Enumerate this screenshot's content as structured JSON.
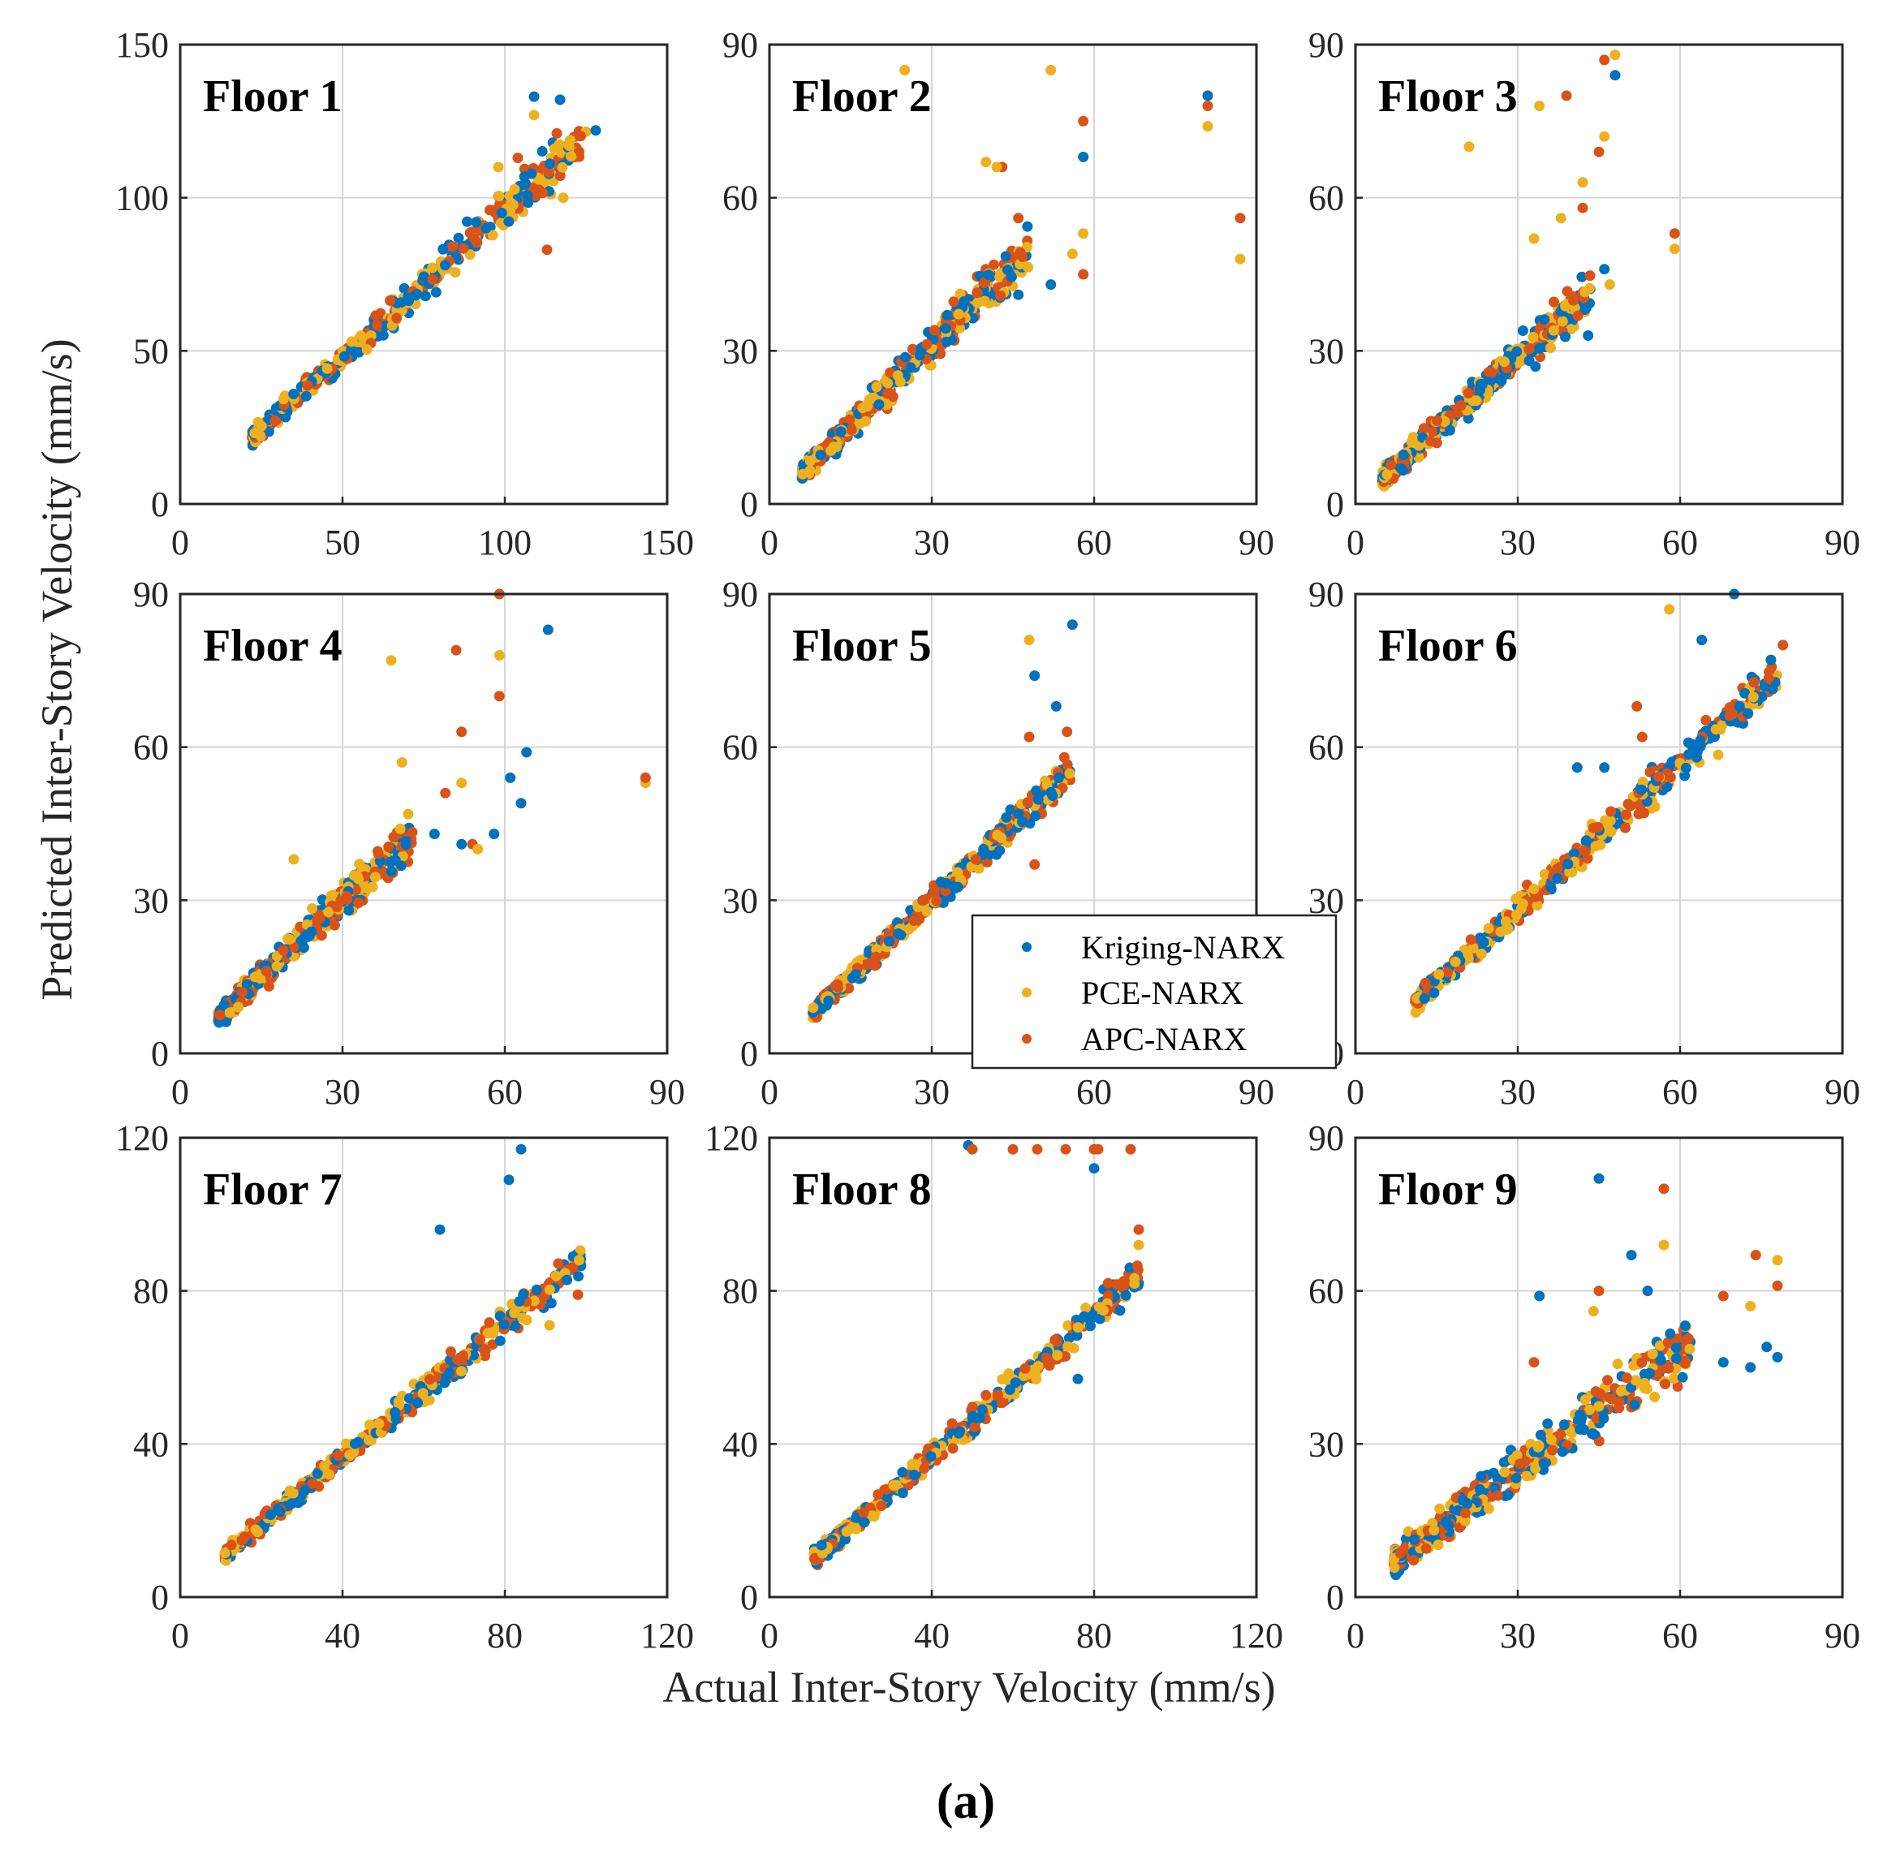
{
  "figure": {
    "ylabel": "Predicted Inter-Story Velocity (mm/s)",
    "xlabel": "Actual Inter-Story Velocity (mm/s)",
    "caption": "(a)"
  },
  "legend": {
    "entries": [
      "Kriging-NARX",
      "PCE-NARX",
      "APC-NARX"
    ],
    "location": "bottom-right of Floor 5 panel"
  },
  "colors": {
    "Kriging-NARX": "#0072BD",
    "PCE-NARX": "#EDB120",
    "APC-NARX": "#D95319"
  },
  "chart_data": [
    {
      "type": "scatter",
      "title": "Floor 1",
      "xlim": [
        0,
        150
      ],
      "ylim": [
        0,
        150
      ],
      "xticks": [
        0,
        50,
        100,
        150
      ],
      "yticks": [
        0,
        50,
        100,
        150
      ],
      "grid": true,
      "trend": {
        "x_start": 22,
        "x_end": 125,
        "y_start": 21,
        "y_end": 120,
        "spread": 4
      },
      "outliers": [
        {
          "series": "Kriging-NARX",
          "x": 109,
          "y": 133
        },
        {
          "series": "Kriging-NARX",
          "x": 117,
          "y": 132
        },
        {
          "series": "Kriging-NARX",
          "x": 128,
          "y": 122
        },
        {
          "series": "PCE-NARX",
          "x": 98,
          "y": 110
        },
        {
          "series": "PCE-NARX",
          "x": 118,
          "y": 100
        },
        {
          "series": "PCE-NARX",
          "x": 109,
          "y": 127
        },
        {
          "series": "APC-NARX",
          "x": 113,
          "y": 83
        },
        {
          "series": "APC-NARX",
          "x": 104,
          "y": 113
        },
        {
          "series": "APC-NARX",
          "x": 116,
          "y": 121
        }
      ]
    },
    {
      "type": "scatter",
      "title": "Floor 2",
      "xlim": [
        0,
        90
      ],
      "ylim": [
        0,
        90
      ],
      "xticks": [
        0,
        30,
        60,
        90
      ],
      "yticks": [
        0,
        30,
        60,
        90
      ],
      "grid": true,
      "trend": {
        "x_start": 6,
        "x_end": 48,
        "y_start": 6,
        "y_end": 50,
        "spread": 2.5
      },
      "outliers": [
        {
          "series": "PCE-NARX",
          "x": 25,
          "y": 85
        },
        {
          "series": "PCE-NARX",
          "x": 52,
          "y": 85
        },
        {
          "series": "PCE-NARX",
          "x": 40,
          "y": 67
        },
        {
          "series": "PCE-NARX",
          "x": 42,
          "y": 66
        },
        {
          "series": "PCE-NARX",
          "x": 58,
          "y": 53
        },
        {
          "series": "PCE-NARX",
          "x": 56,
          "y": 49
        },
        {
          "series": "PCE-NARX",
          "x": 81,
          "y": 74
        },
        {
          "series": "PCE-NARX",
          "x": 87,
          "y": 48
        },
        {
          "series": "Kriging-NARX",
          "x": 81,
          "y": 80
        },
        {
          "series": "Kriging-NARX",
          "x": 58,
          "y": 68
        },
        {
          "series": "Kriging-NARX",
          "x": 52,
          "y": 43
        },
        {
          "series": "Kriging-NARX",
          "x": 46,
          "y": 41
        },
        {
          "series": "APC-NARX",
          "x": 81,
          "y": 78
        },
        {
          "series": "APC-NARX",
          "x": 58,
          "y": 75
        },
        {
          "series": "APC-NARX",
          "x": 43,
          "y": 66
        },
        {
          "series": "APC-NARX",
          "x": 87,
          "y": 56
        },
        {
          "series": "APC-NARX",
          "x": 58,
          "y": 45
        },
        {
          "series": "APC-NARX",
          "x": 46,
          "y": 56
        }
      ]
    },
    {
      "type": "scatter",
      "title": "Floor 3",
      "xlim": [
        0,
        90
      ],
      "ylim": [
        0,
        90
      ],
      "xticks": [
        0,
        30,
        60,
        90
      ],
      "yticks": [
        0,
        30,
        60,
        90
      ],
      "grid": true,
      "trend": {
        "x_start": 5,
        "x_end": 44,
        "y_start": 5,
        "y_end": 42,
        "spread": 2.5
      },
      "outliers": [
        {
          "series": "Kriging-NARX",
          "x": 48,
          "y": 84
        },
        {
          "series": "Kriging-NARX",
          "x": 46,
          "y": 46
        },
        {
          "series": "Kriging-NARX",
          "x": 43,
          "y": 33
        },
        {
          "series": "PCE-NARX",
          "x": 48,
          "y": 88
        },
        {
          "series": "PCE-NARX",
          "x": 34,
          "y": 78
        },
        {
          "series": "PCE-NARX",
          "x": 21,
          "y": 70
        },
        {
          "series": "PCE-NARX",
          "x": 46,
          "y": 72
        },
        {
          "series": "PCE-NARX",
          "x": 42,
          "y": 63
        },
        {
          "series": "PCE-NARX",
          "x": 38,
          "y": 56
        },
        {
          "series": "PCE-NARX",
          "x": 33,
          "y": 52
        },
        {
          "series": "PCE-NARX",
          "x": 59,
          "y": 50
        },
        {
          "series": "PCE-NARX",
          "x": 47,
          "y": 43
        },
        {
          "series": "APC-NARX",
          "x": 46,
          "y": 87
        },
        {
          "series": "APC-NARX",
          "x": 39,
          "y": 80
        },
        {
          "series": "APC-NARX",
          "x": 45,
          "y": 69
        },
        {
          "series": "APC-NARX",
          "x": 42,
          "y": 58
        },
        {
          "series": "APC-NARX",
          "x": 59,
          "y": 53
        }
      ]
    },
    {
      "type": "scatter",
      "title": "Floor 4",
      "xlim": [
        0,
        90
      ],
      "ylim": [
        0,
        90
      ],
      "xticks": [
        0,
        30,
        60,
        90
      ],
      "yticks": [
        0,
        30,
        60,
        90
      ],
      "grid": true,
      "trend": {
        "x_start": 7,
        "x_end": 43,
        "y_start": 7,
        "y_end": 43,
        "spread": 2.5
      },
      "outliers": [
        {
          "series": "Kriging-NARX",
          "x": 68,
          "y": 83
        },
        {
          "series": "Kriging-NARX",
          "x": 64,
          "y": 59
        },
        {
          "series": "Kriging-NARX",
          "x": 61,
          "y": 54
        },
        {
          "series": "Kriging-NARX",
          "x": 63,
          "y": 49
        },
        {
          "series": "Kriging-NARX",
          "x": 58,
          "y": 43
        },
        {
          "series": "Kriging-NARX",
          "x": 52,
          "y": 41
        },
        {
          "series": "Kriging-NARX",
          "x": 47,
          "y": 43
        },
        {
          "series": "PCE-NARX",
          "x": 39,
          "y": 77
        },
        {
          "series": "PCE-NARX",
          "x": 59,
          "y": 78
        },
        {
          "series": "PCE-NARX",
          "x": 41,
          "y": 57
        },
        {
          "series": "PCE-NARX",
          "x": 52,
          "y": 53
        },
        {
          "series": "PCE-NARX",
          "x": 55,
          "y": 40
        },
        {
          "series": "PCE-NARX",
          "x": 86,
          "y": 53
        },
        {
          "series": "PCE-NARX",
          "x": 21,
          "y": 38
        },
        {
          "series": "APC-NARX",
          "x": 59,
          "y": 90
        },
        {
          "series": "APC-NARX",
          "x": 51,
          "y": 79
        },
        {
          "series": "APC-NARX",
          "x": 59,
          "y": 70
        },
        {
          "series": "APC-NARX",
          "x": 52,
          "y": 63
        },
        {
          "series": "APC-NARX",
          "x": 86,
          "y": 54
        },
        {
          "series": "APC-NARX",
          "x": 49,
          "y": 51
        },
        {
          "series": "APC-NARX",
          "x": 54,
          "y": 41
        }
      ]
    },
    {
      "type": "scatter",
      "title": "Floor 5",
      "xlim": [
        0,
        90
      ],
      "ylim": [
        0,
        90
      ],
      "xticks": [
        0,
        30,
        60,
        90
      ],
      "yticks": [
        0,
        30,
        60,
        90
      ],
      "grid": true,
      "trend": {
        "x_start": 8,
        "x_end": 56,
        "y_start": 8,
        "y_end": 56,
        "spread": 2
      },
      "outliers": [
        {
          "series": "Kriging-NARX",
          "x": 56,
          "y": 84
        },
        {
          "series": "Kriging-NARX",
          "x": 49,
          "y": 74
        },
        {
          "series": "Kriging-NARX",
          "x": 53,
          "y": 68
        },
        {
          "series": "PCE-NARX",
          "x": 48,
          "y": 81
        },
        {
          "series": "APC-NARX",
          "x": 48,
          "y": 62
        },
        {
          "series": "APC-NARX",
          "x": 55,
          "y": 63
        },
        {
          "series": "APC-NARX",
          "x": 49,
          "y": 37
        }
      ]
    },
    {
      "type": "scatter",
      "title": "Floor 6",
      "xlim": [
        0,
        90
      ],
      "ylim": [
        0,
        90
      ],
      "xticks": [
        0,
        30,
        60,
        90
      ],
      "yticks": [
        0,
        30,
        60,
        90
      ],
      "grid": true,
      "trend": {
        "x_start": 11,
        "x_end": 78,
        "y_start": 10,
        "y_end": 74,
        "spread": 2.5
      },
      "outliers": [
        {
          "series": "Kriging-NARX",
          "x": 70,
          "y": 90
        },
        {
          "series": "Kriging-NARX",
          "x": 64,
          "y": 81
        },
        {
          "series": "Kriging-NARX",
          "x": 41,
          "y": 56
        },
        {
          "series": "Kriging-NARX",
          "x": 46,
          "y": 56
        },
        {
          "series": "PCE-NARX",
          "x": 58,
          "y": 87
        },
        {
          "series": "APC-NARX",
          "x": 79,
          "y": 80
        },
        {
          "series": "APC-NARX",
          "x": 52,
          "y": 68
        },
        {
          "series": "APC-NARX",
          "x": 53,
          "y": 62
        }
      ]
    },
    {
      "type": "scatter",
      "title": "Floor 7",
      "xlim": [
        0,
        120
      ],
      "ylim": [
        0,
        120
      ],
      "xticks": [
        0,
        40,
        80,
        120
      ],
      "yticks": [
        0,
        40,
        80,
        120
      ],
      "grid": true,
      "trend": {
        "x_start": 11,
        "x_end": 99,
        "y_start": 11,
        "y_end": 88,
        "spread": 2.5
      },
      "outliers": [
        {
          "series": "Kriging-NARX",
          "x": 84,
          "y": 117
        },
        {
          "series": "Kriging-NARX",
          "x": 81,
          "y": 109
        },
        {
          "series": "Kriging-NARX",
          "x": 64,
          "y": 96
        },
        {
          "series": "PCE-NARX",
          "x": 91,
          "y": 71
        },
        {
          "series": "APC-NARX",
          "x": 98,
          "y": 79
        },
        {
          "series": "APC-NARX",
          "x": 77,
          "y": 66
        }
      ]
    },
    {
      "type": "scatter",
      "title": "Floor 8",
      "xlim": [
        0,
        120
      ],
      "ylim": [
        0,
        120
      ],
      "xticks": [
        0,
        40,
        80,
        120
      ],
      "yticks": [
        0,
        40,
        80,
        120
      ],
      "grid": true,
      "trend": {
        "x_start": 11,
        "x_end": 91,
        "y_start": 10,
        "y_end": 84,
        "spread": 3
      },
      "outliers": [
        {
          "series": "Kriging-NARX",
          "x": 49,
          "y": 118
        },
        {
          "series": "Kriging-NARX",
          "x": 80,
          "y": 112
        },
        {
          "series": "APC-NARX",
          "x": 50,
          "y": 117
        },
        {
          "series": "APC-NARX",
          "x": 60,
          "y": 117
        },
        {
          "series": "APC-NARX",
          "x": 66,
          "y": 117
        },
        {
          "series": "APC-NARX",
          "x": 73,
          "y": 117
        },
        {
          "series": "APC-NARX",
          "x": 80,
          "y": 117
        },
        {
          "series": "APC-NARX",
          "x": 81,
          "y": 117
        },
        {
          "series": "APC-NARX",
          "x": 89,
          "y": 117
        },
        {
          "series": "APC-NARX",
          "x": 91,
          "y": 96
        },
        {
          "series": "PCE-NARX",
          "x": 91,
          "y": 92
        },
        {
          "series": "Kriging-NARX",
          "x": 91,
          "y": 82
        },
        {
          "series": "Kriging-NARX",
          "x": 76,
          "y": 57
        }
      ]
    },
    {
      "type": "scatter",
      "title": "Floor 9",
      "xlim": [
        0,
        90
      ],
      "ylim": [
        0,
        90
      ],
      "xticks": [
        0,
        30,
        60,
        90
      ],
      "yticks": [
        0,
        30,
        60,
        90
      ],
      "grid": true,
      "trend": {
        "x_start": 7,
        "x_end": 62,
        "y_start": 7,
        "y_end": 50,
        "spread": 3.5
      },
      "outliers": [
        {
          "series": "Kriging-NARX",
          "x": 45,
          "y": 82
        },
        {
          "series": "APC-NARX",
          "x": 57,
          "y": 80
        },
        {
          "series": "PCE-NARX",
          "x": 57,
          "y": 69
        },
        {
          "series": "Kriging-NARX",
          "x": 51,
          "y": 67
        },
        {
          "series": "APC-NARX",
          "x": 74,
          "y": 67
        },
        {
          "series": "PCE-NARX",
          "x": 78,
          "y": 66
        },
        {
          "series": "APC-NARX",
          "x": 78,
          "y": 61
        },
        {
          "series": "Kriging-NARX",
          "x": 34,
          "y": 59
        },
        {
          "series": "APC-NARX",
          "x": 68,
          "y": 59
        },
        {
          "series": "PCE-NARX",
          "x": 73,
          "y": 57
        },
        {
          "series": "Kriging-NARX",
          "x": 78,
          "y": 47
        },
        {
          "series": "Kriging-NARX",
          "x": 76,
          "y": 49
        },
        {
          "series": "Kriging-NARX",
          "x": 73,
          "y": 45
        },
        {
          "series": "Kriging-NARX",
          "x": 68,
          "y": 46
        },
        {
          "series": "APC-NARX",
          "x": 33,
          "y": 46
        },
        {
          "series": "APC-NARX",
          "x": 45,
          "y": 60
        },
        {
          "series": "PCE-NARX",
          "x": 44,
          "y": 56
        },
        {
          "series": "Kriging-NARX",
          "x": 54,
          "y": 60
        }
      ]
    }
  ]
}
